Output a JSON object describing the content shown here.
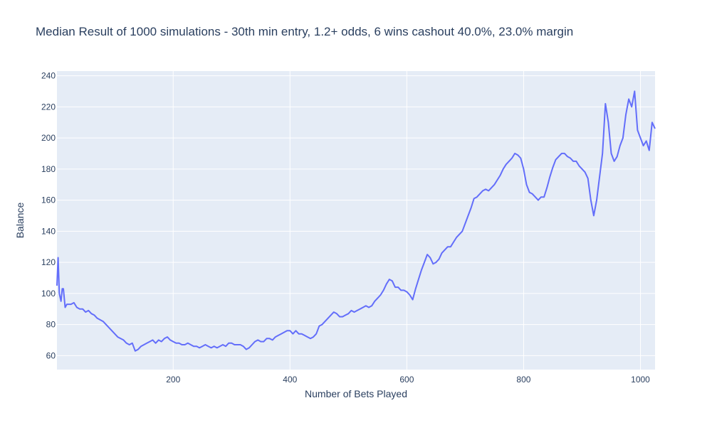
{
  "chart_data": {
    "type": "line",
    "title": "Median Result of 1000 simulations - 30th min entry, 1.2+ odds, 6 wins cashout 40.0%, 23.0% margin",
    "xlabel": "Number of Bets Played",
    "ylabel": "Balance",
    "xlim": [
      1,
      1025
    ],
    "ylim": [
      51,
      243
    ],
    "xticks": [
      200,
      400,
      600,
      800,
      1000
    ],
    "yticks": [
      60,
      80,
      100,
      120,
      140,
      160,
      180,
      200,
      220,
      240
    ],
    "grid": true,
    "legend": "none",
    "colors": {
      "line": "#636efa",
      "plot_bg": "#e5ecf6",
      "grid": "#ffffff",
      "text": "#2a3f5f"
    },
    "series": [
      {
        "x": [
          1,
          3,
          5,
          8,
          10,
          12,
          15,
          18,
          20,
          25,
          30,
          35,
          40,
          45,
          50,
          55,
          60,
          65,
          70,
          75,
          80,
          85,
          90,
          95,
          100,
          105,
          110,
          115,
          120,
          125,
          130,
          135,
          140,
          145,
          150,
          155,
          160,
          165,
          170,
          175,
          180,
          185,
          190,
          195,
          200,
          205,
          210,
          215,
          220,
          225,
          230,
          235,
          240,
          245,
          250,
          255,
          260,
          265,
          270,
          275,
          280,
          285,
          290,
          295,
          300,
          305,
          310,
          315,
          320,
          325,
          330,
          335,
          340,
          345,
          350,
          355,
          360,
          365,
          370,
          375,
          380,
          385,
          390,
          395,
          400,
          405,
          410,
          415,
          420,
          425,
          430,
          435,
          440,
          445,
          450,
          455,
          460,
          465,
          470,
          475,
          480,
          485,
          490,
          495,
          500,
          505,
          510,
          515,
          520,
          525,
          530,
          535,
          540,
          545,
          550,
          555,
          560,
          565,
          570,
          575,
          580,
          585,
          590,
          595,
          600,
          605,
          610,
          615,
          620,
          625,
          630,
          635,
          640,
          645,
          650,
          655,
          660,
          665,
          670,
          675,
          680,
          685,
          690,
          695,
          700,
          705,
          710,
          715,
          720,
          725,
          730,
          735,
          740,
          745,
          750,
          755,
          760,
          765,
          770,
          775,
          780,
          785,
          790,
          795,
          800,
          805,
          810,
          815,
          820,
          825,
          830,
          835,
          840,
          845,
          850,
          855,
          860,
          865,
          870,
          875,
          880,
          885,
          890,
          895,
          900,
          905,
          910,
          915,
          920,
          925,
          930,
          935,
          940,
          945,
          950,
          955,
          960,
          965,
          970,
          975,
          980,
          985,
          990,
          995,
          1000,
          1005,
          1010,
          1015,
          1020,
          1025
        ],
        "y": [
          105,
          123,
          100,
          95,
          103,
          103,
          91,
          93,
          93,
          93,
          94,
          91,
          90,
          90,
          88,
          89,
          87,
          86,
          84,
          83,
          82,
          80,
          78,
          76,
          74,
          72,
          71,
          70,
          68,
          67,
          68,
          63,
          64,
          66,
          67,
          68,
          69,
          70,
          68,
          70,
          69,
          71,
          72,
          70,
          69,
          68,
          68,
          67,
          67,
          68,
          67,
          66,
          66,
          65,
          66,
          67,
          66,
          65,
          66,
          65,
          66,
          67,
          66,
          68,
          68,
          67,
          67,
          67,
          66,
          64,
          65,
          67,
          69,
          70,
          69,
          69,
          71,
          71,
          70,
          72,
          73,
          74,
          75,
          76,
          76,
          74,
          76,
          74,
          74,
          73,
          72,
          71,
          72,
          74,
          79,
          80,
          82,
          84,
          86,
          88,
          87,
          85,
          85,
          86,
          87,
          89,
          88,
          89,
          90,
          91,
          92,
          91,
          92,
          95,
          97,
          99,
          102,
          106,
          109,
          108,
          104,
          104,
          102,
          102,
          101,
          99,
          96,
          103,
          109,
          115,
          120,
          125,
          123,
          119,
          120,
          122,
          126,
          128,
          130,
          130,
          133,
          136,
          138,
          140,
          145,
          150,
          155,
          161,
          162,
          164,
          166,
          167,
          166,
          168,
          170,
          173,
          176,
          180,
          183,
          185,
          187,
          190,
          189,
          187,
          180,
          170,
          165,
          164,
          162,
          160,
          162,
          162,
          168,
          175,
          181,
          186,
          188,
          190,
          190,
          188,
          187,
          185,
          185,
          182,
          180,
          178,
          174,
          160,
          150,
          160,
          175,
          190,
          222,
          210,
          190,
          185,
          188,
          195,
          200,
          215,
          225,
          220,
          230,
          205,
          200,
          195,
          198,
          192,
          210,
          206
        ]
      }
    ]
  }
}
